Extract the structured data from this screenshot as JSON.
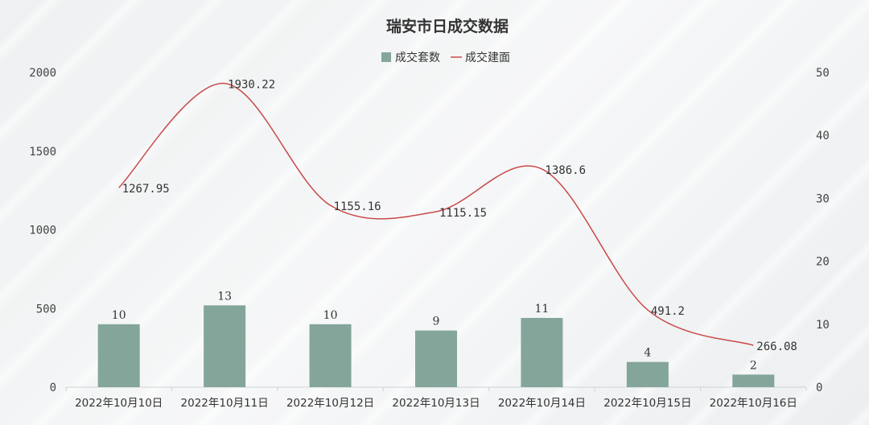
{
  "chart_data": {
    "type": "bar",
    "title": "瑞安市日成交数据",
    "legend_position": "top",
    "grid": false,
    "categories": [
      "2022年10月10日",
      "2022年10月11日",
      "2022年10月12日",
      "2022年10月13日",
      "2022年10月14日",
      "2022年10月15日",
      "2022年10月16日"
    ],
    "series": [
      {
        "name": "成交套数",
        "type": "bar",
        "axis": "right",
        "color": "#84a59a",
        "values": [
          10,
          13,
          10,
          9,
          11,
          4,
          2
        ],
        "labels": [
          "10",
          "13",
          "10",
          "9",
          "11",
          "4",
          "2"
        ]
      },
      {
        "name": "成交建面",
        "type": "line",
        "smooth": true,
        "axis": "left",
        "color": "#c94a4a",
        "values": [
          1267.95,
          1930.22,
          1155.16,
          1115.15,
          1386.6,
          491.2,
          266.08
        ],
        "labels": [
          "1267.95",
          "1930.22",
          "1155.16",
          "1115.15",
          "1386.6",
          "491.2",
          "266.08"
        ]
      }
    ],
    "y_left": {
      "min": 0,
      "max": 2000,
      "ticks": [
        "0",
        "500",
        "1000",
        "1500",
        "2000"
      ]
    },
    "y_right": {
      "min": 0,
      "max": 50,
      "ticks": [
        "0",
        "10",
        "20",
        "30",
        "40",
        "50"
      ]
    }
  }
}
